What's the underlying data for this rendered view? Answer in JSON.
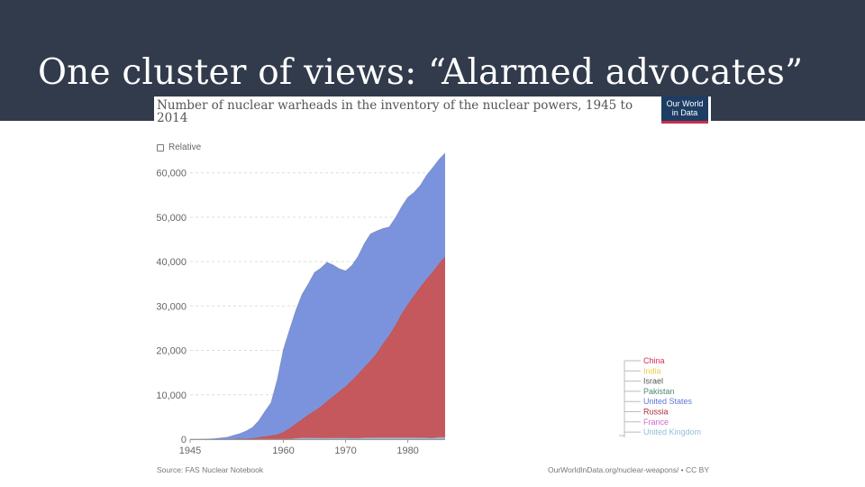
{
  "slide": {
    "title": "One cluster of views: “Alarmed advocates”"
  },
  "chart": {
    "title": "Number of nuclear warheads in the inventory of the nuclear powers, 1945 to 2014",
    "logo_line1": "Our World",
    "logo_line2": "in Data",
    "relative_label": "Relative",
    "source": "Source: FAS Nuclear Notebook",
    "url": "OurWorldInData.org/nuclear-weapons/ • CC BY"
  },
  "colors": {
    "banner": "#323b4c",
    "united_states": "#7b93dc",
    "russia": "#c4585d",
    "united_kingdom": "#9fb8d6",
    "france": "#c66fc4",
    "china": "#d62d55"
  },
  "chart_data": {
    "type": "area",
    "stacked": true,
    "title": "Number of nuclear warheads in the inventory of the nuclear powers, 1945 to 2014",
    "xlabel": "",
    "ylabel": "",
    "xlim": [
      1945,
      1986
    ],
    "ylim": [
      0,
      65000
    ],
    "x_ticks": [
      1945,
      1960,
      1970,
      1980
    ],
    "y_ticks": [
      0,
      10000,
      20000,
      30000,
      40000,
      50000,
      60000
    ],
    "y_tick_labels": [
      "0",
      "10,000",
      "20,000",
      "30,000",
      "40,000",
      "50,000",
      "60,000"
    ],
    "x": [
      1945,
      1946,
      1947,
      1948,
      1949,
      1950,
      1951,
      1952,
      1953,
      1954,
      1955,
      1956,
      1957,
      1958,
      1959,
      1960,
      1961,
      1962,
      1963,
      1964,
      1965,
      1966,
      1967,
      1968,
      1969,
      1970,
      1971,
      1972,
      1973,
      1974,
      1975,
      1976,
      1977,
      1978,
      1979,
      1980,
      1981,
      1982,
      1983,
      1984,
      1985,
      1986
    ],
    "series": [
      {
        "name": "United Kingdom",
        "values": [
          0,
          0,
          0,
          0,
          0,
          0,
          0,
          0,
          1,
          5,
          10,
          15,
          20,
          22,
          30,
          30,
          50,
          205,
          280,
          310,
          310,
          270,
          270,
          280,
          308,
          280,
          220,
          220,
          325,
          325,
          350,
          350,
          350,
          350,
          350,
          350,
          350,
          335,
          320,
          270,
          422,
          422
        ]
      },
      {
        "name": "Russia",
        "values": [
          0,
          0,
          0,
          0,
          0,
          5,
          25,
          50,
          120,
          150,
          200,
          426,
          660,
          869,
          1060,
          1605,
          2471,
          3322,
          4238,
          5221,
          6129,
          7089,
          8339,
          9399,
          10538,
          11643,
          13092,
          14478,
          15915,
          17385,
          19055,
          21205,
          23044,
          25393,
          27935,
          30062,
          32049,
          33952,
          35804,
          37431,
          39197,
          40723
        ]
      },
      {
        "name": "United States",
        "values": [
          2,
          9,
          13,
          50,
          170,
          299,
          438,
          841,
          1169,
          1703,
          2422,
          3692,
          5543,
          7345,
          12298,
          18638,
          22229,
          25540,
          28133,
          29463,
          31139,
          31175,
          31255,
          29561,
          27552,
          26008,
          25830,
          26516,
          27835,
          28537,
          27519,
          25914,
          24418,
          24138,
          24104,
          24104,
          23208,
          22886,
          23305,
          23459,
          23368,
          23317
        ]
      }
    ],
    "legend_note": "labels shown to the right of the plot",
    "legend": [
      {
        "name": "China",
        "color": "#d62d55"
      },
      {
        "name": "India",
        "color": "#f2c84b"
      },
      {
        "name": "Israel",
        "color": "#555555"
      },
      {
        "name": "Pakistan",
        "color": "#4c8b6e"
      },
      {
        "name": "United States",
        "color": "#5c78d8"
      },
      {
        "name": "Russia",
        "color": "#b02d3c"
      },
      {
        "name": "France",
        "color": "#d06ad0"
      },
      {
        "name": "United Kingdom",
        "color": "#8ec0d8"
      }
    ]
  }
}
